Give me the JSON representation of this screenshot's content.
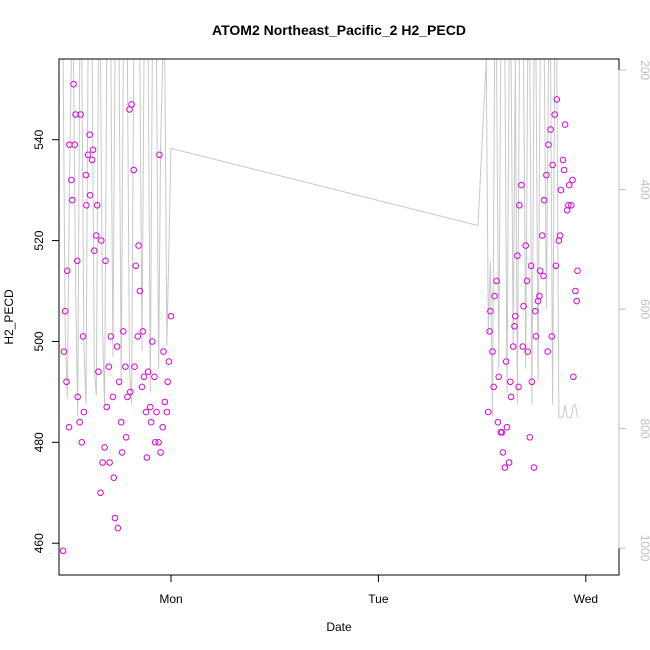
{
  "chart_data": {
    "type": "scatter",
    "title": "ATOM2 Northeast_Pacific_2 H2_PECD",
    "xlabel": "Date",
    "ylabel": "H2_PECD",
    "x_ticks": [
      "Mon",
      "Tue",
      "Wed"
    ],
    "xlim": [
      -0.27,
      1.08
    ],
    "ylim": [
      453.7,
      556.0
    ],
    "y_ticks": [
      460,
      480,
      500,
      520,
      540
    ],
    "y2lim": [
      1045.1,
      181.3
    ],
    "y2_ticks": [
      200,
      400,
      600,
      800,
      1000
    ],
    "colors": {
      "points": "#e000e0",
      "altitude_line": "#c8c8c8",
      "right_axis": "#c0c0c0"
    },
    "grid": false,
    "legend": "none",
    "altitude_series": {
      "axis": "right",
      "points": [
        [
          -0.26,
          181
        ],
        [
          -0.255,
          640
        ],
        [
          -0.25,
          750
        ],
        [
          -0.245,
          400
        ],
        [
          -0.24,
          181
        ],
        [
          -0.235,
          181
        ],
        [
          -0.23,
          560
        ],
        [
          -0.225,
          780
        ],
        [
          -0.22,
          181
        ],
        [
          -0.215,
          181
        ],
        [
          -0.21,
          660
        ],
        [
          -0.205,
          760
        ],
        [
          -0.2,
          181
        ],
        [
          -0.195,
          181
        ],
        [
          -0.19,
          181
        ],
        [
          -0.185,
          700
        ],
        [
          -0.18,
          745
        ],
        [
          -0.175,
          181
        ],
        [
          -0.17,
          181
        ],
        [
          -0.165,
          640
        ],
        [
          -0.16,
          760
        ],
        [
          -0.155,
          181
        ],
        [
          -0.15,
          181
        ],
        [
          -0.145,
          181
        ],
        [
          -0.14,
          680
        ],
        [
          -0.135,
          181
        ],
        [
          -0.125,
          181
        ],
        [
          -0.12,
          720
        ],
        [
          -0.115,
          181
        ],
        [
          -0.105,
          181
        ],
        [
          -0.1,
          700
        ],
        [
          -0.095,
          760
        ],
        [
          -0.09,
          181
        ],
        [
          -0.08,
          181
        ],
        [
          -0.075,
          181
        ],
        [
          -0.07,
          670
        ],
        [
          -0.065,
          181
        ],
        [
          -0.055,
          181
        ],
        [
          -0.05,
          740
        ],
        [
          -0.045,
          181
        ],
        [
          -0.04,
          181
        ],
        [
          -0.035,
          181
        ],
        [
          -0.03,
          700
        ],
        [
          -0.025,
          330
        ],
        [
          -0.02,
          181
        ],
        [
          -0.015,
          181
        ],
        [
          -0.01,
          660
        ],
        [
          0.0,
          331
        ],
        [
          0.74,
          460
        ],
        [
          0.76,
          181
        ],
        [
          0.765,
          640
        ],
        [
          0.77,
          520
        ],
        [
          0.775,
          780
        ],
        [
          0.78,
          181
        ],
        [
          0.785,
          181
        ],
        [
          0.79,
          700
        ],
        [
          0.795,
          181
        ],
        [
          0.8,
          181
        ],
        [
          0.805,
          181
        ],
        [
          0.81,
          740
        ],
        [
          0.815,
          181
        ],
        [
          0.82,
          181
        ],
        [
          0.825,
          660
        ],
        [
          0.83,
          181
        ],
        [
          0.835,
          760
        ],
        [
          0.84,
          181
        ],
        [
          0.85,
          181
        ],
        [
          0.855,
          700
        ],
        [
          0.86,
          181
        ],
        [
          0.865,
          181
        ],
        [
          0.87,
          760
        ],
        [
          0.875,
          181
        ],
        [
          0.88,
          181
        ],
        [
          0.885,
          720
        ],
        [
          0.89,
          181
        ],
        [
          0.895,
          181
        ],
        [
          0.9,
          181
        ],
        [
          0.905,
          600
        ],
        [
          0.91,
          181
        ],
        [
          0.915,
          181
        ],
        [
          0.92,
          760
        ],
        [
          0.925,
          181
        ],
        [
          0.93,
          181
        ],
        [
          0.935,
          781
        ],
        [
          0.945,
          781
        ],
        [
          0.95,
          760
        ],
        [
          0.955,
          781
        ],
        [
          0.96,
          781
        ],
        [
          0.965,
          781
        ],
        [
          0.97,
          760
        ],
        [
          0.975,
          760
        ],
        [
          0.98,
          781
        ]
      ]
    },
    "series": [
      {
        "axis": "left",
        "x": [
          -0.26,
          -0.255,
          -0.25,
          -0.245,
          -0.24,
          -0.235,
          -0.23,
          -0.225,
          -0.22,
          -0.215,
          -0.21,
          -0.205,
          -0.2,
          -0.195,
          -0.19,
          -0.185,
          -0.18,
          -0.175,
          -0.17,
          -0.165,
          -0.16,
          -0.155,
          -0.15,
          -0.145,
          -0.14,
          -0.135,
          -0.13,
          -0.125,
          -0.12,
          -0.115,
          -0.11,
          -0.105,
          -0.1,
          -0.095,
          -0.09,
          -0.085,
          -0.08,
          -0.075,
          -0.07,
          -0.065,
          -0.06,
          -0.055,
          -0.05,
          -0.045,
          -0.04,
          -0.035,
          -0.03,
          -0.025,
          -0.02,
          -0.015,
          -0.01,
          -0.005,
          0.0,
          -0.258,
          -0.252,
          -0.246,
          -0.238,
          -0.232,
          -0.226,
          -0.218,
          -0.212,
          -0.204,
          -0.196,
          -0.188,
          -0.178,
          -0.168,
          -0.158,
          -0.148,
          -0.138,
          -0.128,
          -0.118,
          -0.108,
          -0.098,
          -0.088,
          -0.078,
          -0.068,
          -0.058,
          -0.048,
          -0.038,
          -0.028,
          -0.018,
          -0.008,
          0.765,
          0.77,
          0.775,
          0.78,
          0.785,
          0.79,
          0.795,
          0.8,
          0.805,
          0.81,
          0.815,
          0.82,
          0.825,
          0.83,
          0.835,
          0.84,
          0.845,
          0.85,
          0.855,
          0.86,
          0.865,
          0.87,
          0.875,
          0.88,
          0.885,
          0.89,
          0.895,
          0.9,
          0.905,
          0.91,
          0.915,
          0.92,
          0.925,
          0.93,
          0.935,
          0.94,
          0.945,
          0.95,
          0.955,
          0.96,
          0.965,
          0.97,
          0.975,
          0.98,
          0.768,
          0.778,
          0.788,
          0.798,
          0.808,
          0.818,
          0.828,
          0.838,
          0.848,
          0.858,
          0.868,
          0.878,
          0.888,
          0.898,
          0.908,
          0.918,
          0.928,
          0.938,
          0.948,
          0.958,
          0.968,
          0.978
        ],
        "y": [
          458.5,
          506,
          514,
          539,
          532,
          551,
          545,
          489,
          484,
          480,
          486,
          533,
          537,
          529,
          536,
          518,
          521,
          494,
          470,
          476,
          479,
          487,
          495,
          501,
          489,
          465,
          499,
          492,
          484,
          502,
          495,
          489,
          546,
          547,
          534,
          515,
          501,
          510,
          491,
          493,
          486,
          494,
          487,
          500,
          493,
          486,
          480,
          478,
          483,
          488,
          486,
          496,
          505,
          498,
          492,
          483,
          528,
          539,
          516,
          545,
          501,
          527,
          541,
          538,
          527,
          520,
          516,
          476,
          473,
          463,
          478,
          481,
          490,
          495,
          519,
          502,
          477,
          484,
          480,
          537,
          498,
          492,
          486,
          506,
          498,
          509,
          512,
          493,
          482,
          478,
          475,
          483,
          476,
          489,
          499,
          505,
          517,
          527,
          531,
          507,
          519,
          498,
          481,
          492,
          475,
          501,
          508,
          514,
          521,
          528,
          533,
          539,
          542,
          535,
          545,
          548,
          520,
          530,
          536,
          543,
          526,
          531,
          527,
          493,
          510,
          514,
          502,
          491,
          484,
          482,
          496,
          492,
          503,
          491,
          499,
          512,
          515,
          506,
          509,
          513,
          498,
          501,
          515,
          521,
          534,
          527,
          532,
          508
        ]
      }
    ]
  }
}
